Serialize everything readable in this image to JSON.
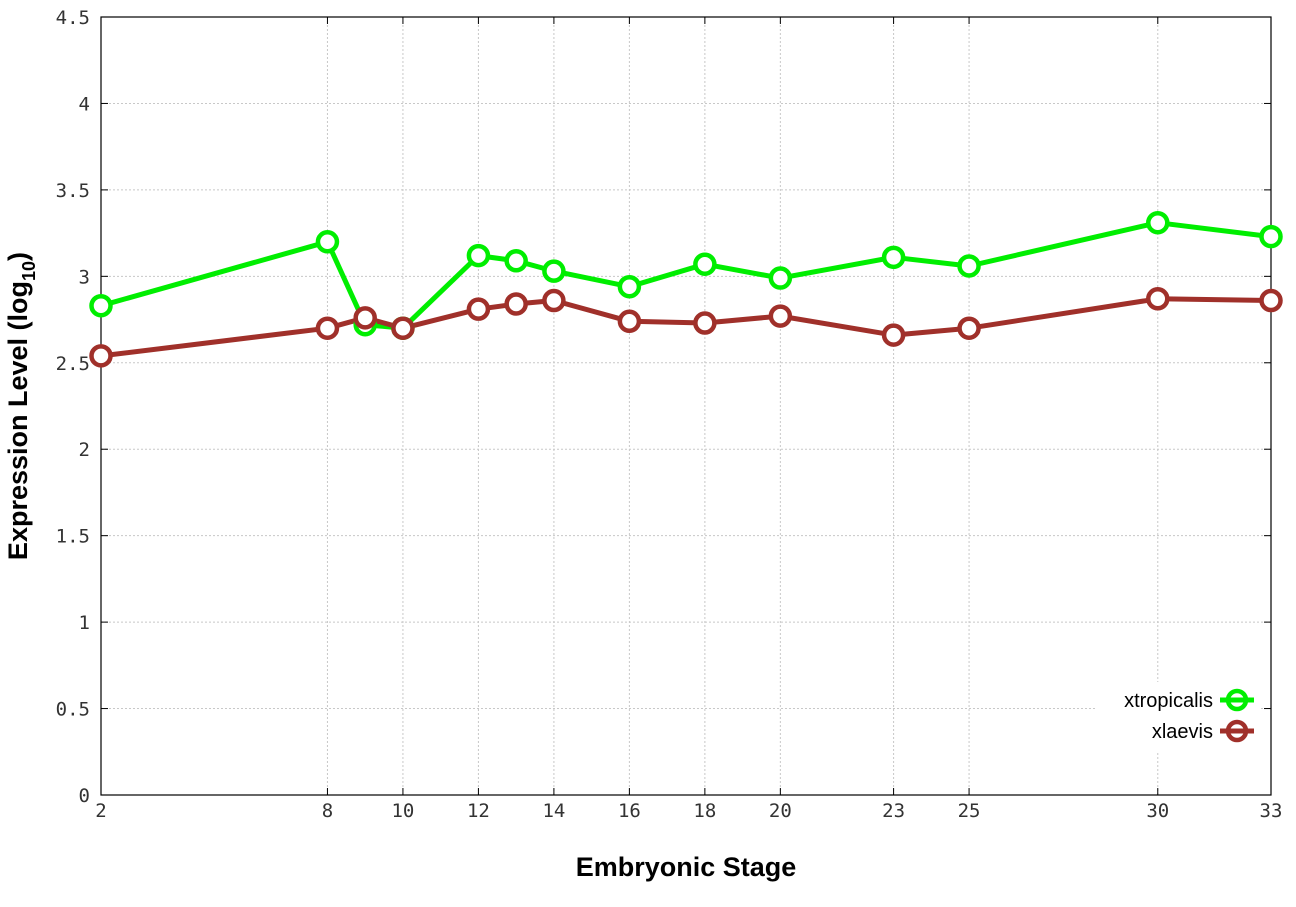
{
  "chart_data": {
    "type": "line",
    "xlabel": "Embryonic Stage",
    "ylabel_main": "Expression Level (log",
    "ylabel_sub": "10",
    "ylabel_close": ")",
    "xlim": [
      2,
      33
    ],
    "ylim": [
      0,
      4.5
    ],
    "xticks": [
      2,
      8,
      10,
      12,
      14,
      16,
      18,
      20,
      23,
      25,
      30,
      33
    ],
    "yticks": [
      0,
      0.5,
      1,
      1.5,
      2,
      2.5,
      3,
      3.5,
      4,
      4.5
    ],
    "ytick_labels": [
      "0",
      "0.5",
      "1",
      "1.5",
      "2",
      "2.5",
      "3",
      "3.5",
      "4",
      "4.5"
    ],
    "grid": true,
    "legend_position": "bottom-right",
    "series": [
      {
        "name": "xtropicalis",
        "color": "#00ee00",
        "x": [
          2,
          8,
          9,
          10,
          12,
          13,
          14,
          16,
          18,
          20,
          23,
          25,
          30,
          33
        ],
        "y": [
          2.83,
          3.2,
          2.72,
          2.7,
          3.12,
          3.09,
          3.03,
          2.94,
          3.07,
          2.99,
          3.11,
          3.06,
          3.31,
          3.23
        ]
      },
      {
        "name": "xlaevis",
        "color": "#a0302a",
        "x": [
          2,
          8,
          9,
          10,
          12,
          13,
          14,
          16,
          18,
          20,
          23,
          25,
          30,
          33
        ],
        "y": [
          2.54,
          2.7,
          2.76,
          2.7,
          2.81,
          2.84,
          2.86,
          2.74,
          2.73,
          2.77,
          2.66,
          2.7,
          2.87,
          2.86
        ]
      }
    ]
  }
}
